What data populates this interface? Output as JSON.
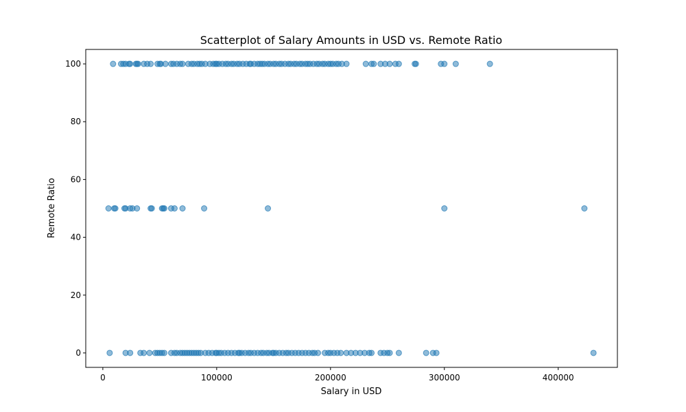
{
  "chart_data": {
    "type": "scatter",
    "title": "Scatterplot of Salary Amounts in USD vs. Remote Ratio",
    "xlabel": "Salary in USD",
    "ylabel": "Remote Ratio",
    "xlim": [
      -15000,
      452000
    ],
    "ylim": [
      -5,
      105
    ],
    "xticks": [
      0,
      100000,
      200000,
      300000,
      400000
    ],
    "yticks": [
      0,
      20,
      40,
      60,
      80,
      100
    ],
    "grid": false,
    "color": "#1f77b4",
    "series": [
      {
        "points": [
          [
            9000,
            100
          ],
          [
            16000,
            100
          ],
          [
            18000,
            100
          ],
          [
            20000,
            100
          ],
          [
            23000,
            100
          ],
          [
            24000,
            100
          ],
          [
            29000,
            100
          ],
          [
            30000,
            100
          ],
          [
            31000,
            100
          ],
          [
            36000,
            100
          ],
          [
            39000,
            100
          ],
          [
            42000,
            100
          ],
          [
            48000,
            100
          ],
          [
            50000,
            100
          ],
          [
            51000,
            100
          ],
          [
            55000,
            100
          ],
          [
            60000,
            100
          ],
          [
            62000,
            100
          ],
          [
            65000,
            100
          ],
          [
            68000,
            100
          ],
          [
            70000,
            100
          ],
          [
            75000,
            100
          ],
          [
            78000,
            100
          ],
          [
            80000,
            100
          ],
          [
            83000,
            100
          ],
          [
            85000,
            100
          ],
          [
            87000,
            100
          ],
          [
            90000,
            100
          ],
          [
            94000,
            100
          ],
          [
            97000,
            100
          ],
          [
            99000,
            100
          ],
          [
            100000,
            100
          ],
          [
            102000,
            100
          ],
          [
            105000,
            100
          ],
          [
            108000,
            100
          ],
          [
            110000,
            100
          ],
          [
            113000,
            100
          ],
          [
            115000,
            100
          ],
          [
            118000,
            100
          ],
          [
            120000,
            100
          ],
          [
            123000,
            100
          ],
          [
            126000,
            100
          ],
          [
            129000,
            100
          ],
          [
            130000,
            100
          ],
          [
            133000,
            100
          ],
          [
            136000,
            100
          ],
          [
            138000,
            100
          ],
          [
            140000,
            100
          ],
          [
            142000,
            100
          ],
          [
            145000,
            100
          ],
          [
            147000,
            100
          ],
          [
            150000,
            100
          ],
          [
            152000,
            100
          ],
          [
            155000,
            100
          ],
          [
            157000,
            100
          ],
          [
            160000,
            100
          ],
          [
            163000,
            100
          ],
          [
            165000,
            100
          ],
          [
            168000,
            100
          ],
          [
            170000,
            100
          ],
          [
            173000,
            100
          ],
          [
            175000,
            100
          ],
          [
            178000,
            100
          ],
          [
            180000,
            100
          ],
          [
            182000,
            100
          ],
          [
            185000,
            100
          ],
          [
            188000,
            100
          ],
          [
            190000,
            100
          ],
          [
            193000,
            100
          ],
          [
            195000,
            100
          ],
          [
            198000,
            100
          ],
          [
            200000,
            100
          ],
          [
            202000,
            100
          ],
          [
            205000,
            100
          ],
          [
            207000,
            100
          ],
          [
            210000,
            100
          ],
          [
            214000,
            100
          ],
          [
            231000,
            100
          ],
          [
            236000,
            100
          ],
          [
            238000,
            100
          ],
          [
            244000,
            100
          ],
          [
            248000,
            100
          ],
          [
            252000,
            100
          ],
          [
            257000,
            100
          ],
          [
            260000,
            100
          ],
          [
            274000,
            100
          ],
          [
            275000,
            100
          ],
          [
            297000,
            100
          ],
          [
            300000,
            100
          ],
          [
            310000,
            100
          ],
          [
            340000,
            100
          ],
          [
            5000,
            50
          ],
          [
            10000,
            50
          ],
          [
            11000,
            50
          ],
          [
            19000,
            50
          ],
          [
            20000,
            50
          ],
          [
            24000,
            50
          ],
          [
            26000,
            50
          ],
          [
            30000,
            50
          ],
          [
            42000,
            50
          ],
          [
            43000,
            50
          ],
          [
            52000,
            50
          ],
          [
            53000,
            50
          ],
          [
            54000,
            50
          ],
          [
            60000,
            50
          ],
          [
            63000,
            50
          ],
          [
            70000,
            50
          ],
          [
            89000,
            50
          ],
          [
            145000,
            50
          ],
          [
            300000,
            50
          ],
          [
            423000,
            50
          ],
          [
            6000,
            0
          ],
          [
            20000,
            0
          ],
          [
            24000,
            0
          ],
          [
            33000,
            0
          ],
          [
            36000,
            0
          ],
          [
            41000,
            0
          ],
          [
            46000,
            0
          ],
          [
            48000,
            0
          ],
          [
            50000,
            0
          ],
          [
            52000,
            0
          ],
          [
            54000,
            0
          ],
          [
            60000,
            0
          ],
          [
            63000,
            0
          ],
          [
            65000,
            0
          ],
          [
            68000,
            0
          ],
          [
            70000,
            0
          ],
          [
            72000,
            0
          ],
          [
            74000,
            0
          ],
          [
            76000,
            0
          ],
          [
            78000,
            0
          ],
          [
            80000,
            0
          ],
          [
            82000,
            0
          ],
          [
            84000,
            0
          ],
          [
            86000,
            0
          ],
          [
            90000,
            0
          ],
          [
            93000,
            0
          ],
          [
            96000,
            0
          ],
          [
            99000,
            0
          ],
          [
            100000,
            0
          ],
          [
            102000,
            0
          ],
          [
            104000,
            0
          ],
          [
            107000,
            0
          ],
          [
            110000,
            0
          ],
          [
            113000,
            0
          ],
          [
            116000,
            0
          ],
          [
            119000,
            0
          ],
          [
            120000,
            0
          ],
          [
            122000,
            0
          ],
          [
            125000,
            0
          ],
          [
            128000,
            0
          ],
          [
            130000,
            0
          ],
          [
            133000,
            0
          ],
          [
            136000,
            0
          ],
          [
            139000,
            0
          ],
          [
            141000,
            0
          ],
          [
            144000,
            0
          ],
          [
            146000,
            0
          ],
          [
            149000,
            0
          ],
          [
            150000,
            0
          ],
          [
            152000,
            0
          ],
          [
            155000,
            0
          ],
          [
            158000,
            0
          ],
          [
            161000,
            0
          ],
          [
            163000,
            0
          ],
          [
            166000,
            0
          ],
          [
            169000,
            0
          ],
          [
            172000,
            0
          ],
          [
            175000,
            0
          ],
          [
            178000,
            0
          ],
          [
            181000,
            0
          ],
          [
            184000,
            0
          ],
          [
            186000,
            0
          ],
          [
            189000,
            0
          ],
          [
            195000,
            0
          ],
          [
            198000,
            0
          ],
          [
            200000,
            0
          ],
          [
            203000,
            0
          ],
          [
            206000,
            0
          ],
          [
            209000,
            0
          ],
          [
            214000,
            0
          ],
          [
            218000,
            0
          ],
          [
            222000,
            0
          ],
          [
            226000,
            0
          ],
          [
            230000,
            0
          ],
          [
            234000,
            0
          ],
          [
            236000,
            0
          ],
          [
            244000,
            0
          ],
          [
            247000,
            0
          ],
          [
            250000,
            0
          ],
          [
            252000,
            0
          ],
          [
            260000,
            0
          ],
          [
            284000,
            0
          ],
          [
            290000,
            0
          ],
          [
            293000,
            0
          ],
          [
            431000,
            0
          ]
        ]
      }
    ]
  }
}
